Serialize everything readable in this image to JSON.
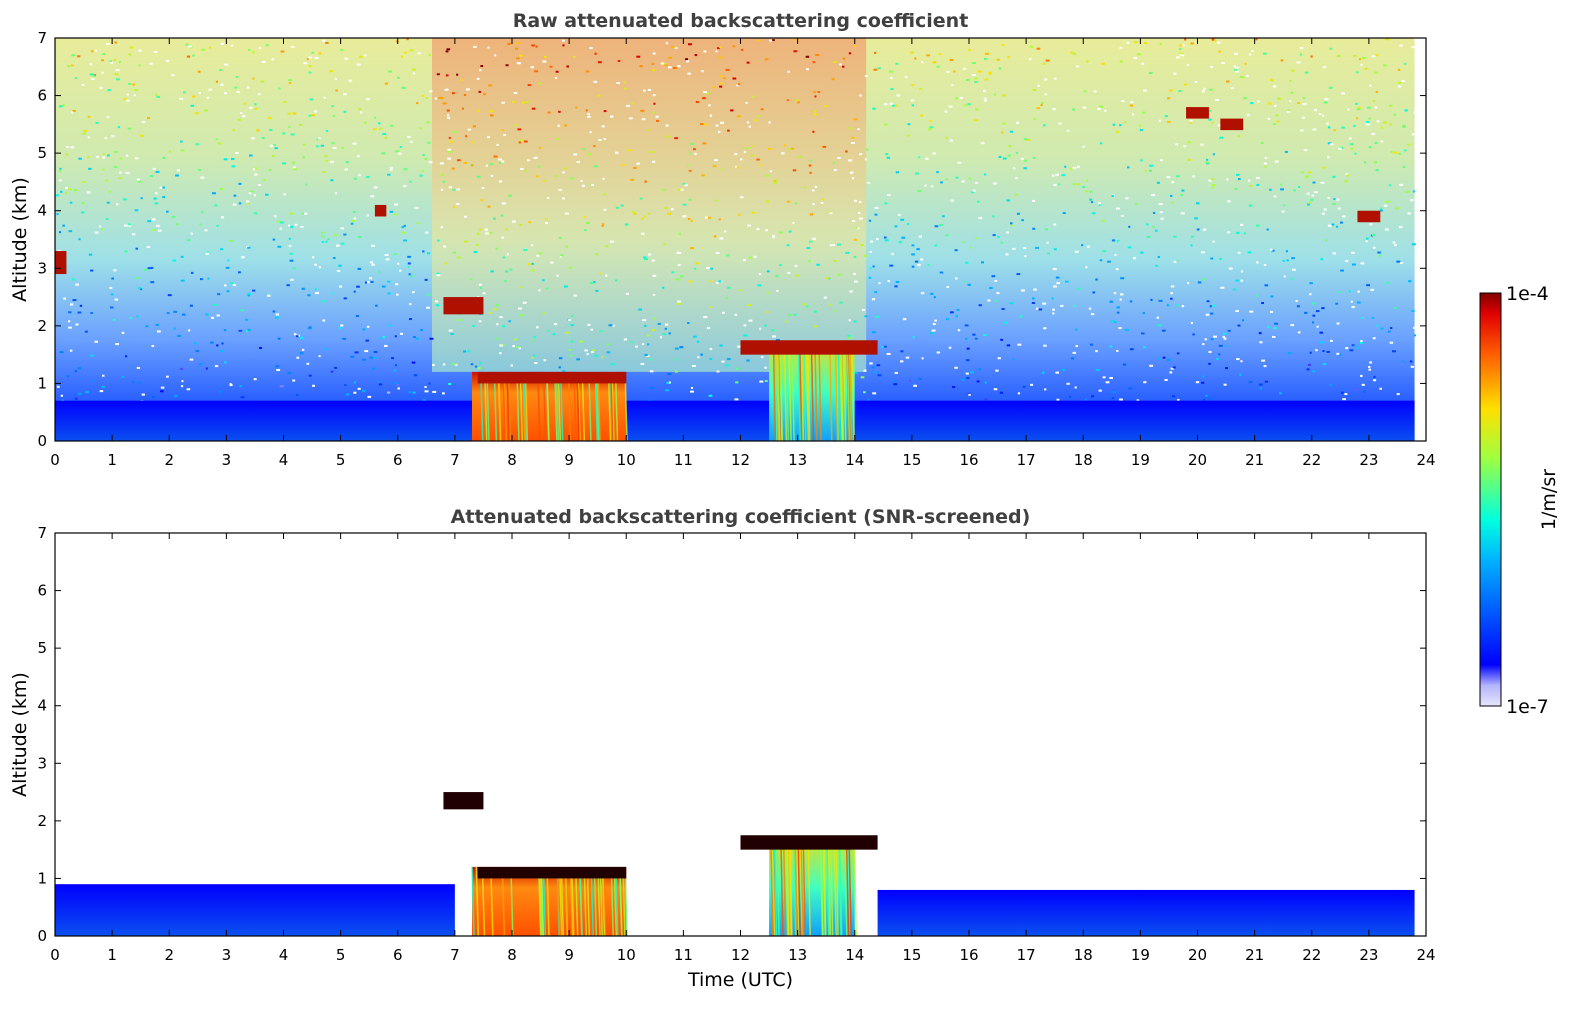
{
  "chart_data": [
    {
      "type": "heatmap",
      "title": "Raw attenuated backscattering coefficient",
      "xlabel": "",
      "ylabel": "Altitude (km)",
      "xlim": [
        0,
        24
      ],
      "ylim": [
        0,
        7
      ],
      "x_ticks": [
        "0",
        "1",
        "2",
        "3",
        "4",
        "5",
        "6",
        "7",
        "8",
        "9",
        "10",
        "11",
        "12",
        "13",
        "14",
        "15",
        "16",
        "17",
        "18",
        "19",
        "20",
        "21",
        "22",
        "23",
        "24"
      ],
      "y_ticks": [
        "0",
        "1",
        "2",
        "3",
        "4",
        "5",
        "6",
        "7"
      ],
      "colormap": "jet",
      "data_end_x": 23.8,
      "features": [
        {
          "kind": "boundary-layer",
          "x": [
            0,
            23.8
          ],
          "y": [
            0,
            0.7
          ]
        },
        {
          "kind": "precipitation",
          "x": [
            7.3,
            10.0
          ],
          "y": [
            0,
            1.2
          ]
        },
        {
          "kind": "precipitation",
          "x": [
            12.5,
            14.0
          ],
          "y": [
            0,
            1.7
          ]
        },
        {
          "kind": "cloud-layer",
          "x": [
            6.8,
            7.5
          ],
          "y": [
            2.2,
            2.5
          ]
        },
        {
          "kind": "cloud-layer",
          "x": [
            7.4,
            10.0
          ],
          "y": [
            1.0,
            1.2
          ]
        },
        {
          "kind": "cloud-layer",
          "x": [
            12.0,
            14.4
          ],
          "y": [
            1.5,
            1.75
          ]
        },
        {
          "kind": "cloud-layer",
          "x": [
            0,
            0.2
          ],
          "y": [
            2.9,
            3.3
          ]
        },
        {
          "kind": "cloud-layer",
          "x": [
            5.6,
            5.8
          ],
          "y": [
            3.9,
            4.1
          ]
        },
        {
          "kind": "cloud-layer",
          "x": [
            19.8,
            20.2
          ],
          "y": [
            5.6,
            5.8
          ]
        },
        {
          "kind": "cloud-layer",
          "x": [
            20.4,
            20.8
          ],
          "y": [
            5.4,
            5.6
          ]
        },
        {
          "kind": "cloud-layer",
          "x": [
            22.8,
            23.2
          ],
          "y": [
            3.8,
            4.0
          ]
        }
      ]
    },
    {
      "type": "heatmap",
      "title": "Attenuated backscattering coefficient (SNR-screened)",
      "xlabel": "Time (UTC)",
      "ylabel": "Altitude (km)",
      "xlim": [
        0,
        24
      ],
      "ylim": [
        0,
        7
      ],
      "x_ticks": [
        "0",
        "1",
        "2",
        "3",
        "4",
        "5",
        "6",
        "7",
        "8",
        "9",
        "10",
        "11",
        "12",
        "13",
        "14",
        "15",
        "16",
        "17",
        "18",
        "19",
        "20",
        "21",
        "22",
        "23",
        "24"
      ],
      "y_ticks": [
        "0",
        "1",
        "2",
        "3",
        "4",
        "5",
        "6",
        "7"
      ],
      "colormap": "jet",
      "data_end_x": 23.8,
      "features": [
        {
          "kind": "boundary-layer",
          "x": [
            0,
            7.0
          ],
          "y": [
            0,
            0.9
          ]
        },
        {
          "kind": "boundary-layer",
          "x": [
            14.4,
            23.8
          ],
          "y": [
            0,
            0.8
          ]
        },
        {
          "kind": "precipitation",
          "x": [
            7.3,
            10.0
          ],
          "y": [
            0,
            1.2
          ]
        },
        {
          "kind": "precipitation",
          "x": [
            12.5,
            14.0
          ],
          "y": [
            0,
            1.7
          ]
        },
        {
          "kind": "cloud-layer",
          "x": [
            6.8,
            7.5
          ],
          "y": [
            2.2,
            2.5
          ]
        },
        {
          "kind": "cloud-layer",
          "x": [
            7.4,
            10.0
          ],
          "y": [
            1.0,
            1.2
          ]
        },
        {
          "kind": "cloud-layer",
          "x": [
            12.0,
            14.4
          ],
          "y": [
            1.5,
            1.75
          ]
        }
      ]
    }
  ],
  "colorbar": {
    "label": "1/m/sr",
    "max_label": "1e-4",
    "min_label": "1e-7",
    "colors": [
      "#e6e6fa",
      "#0000ff",
      "#00a0ff",
      "#00ffe0",
      "#a0ff40",
      "#ffe000",
      "#ff6000",
      "#e00000",
      "#800000"
    ]
  }
}
